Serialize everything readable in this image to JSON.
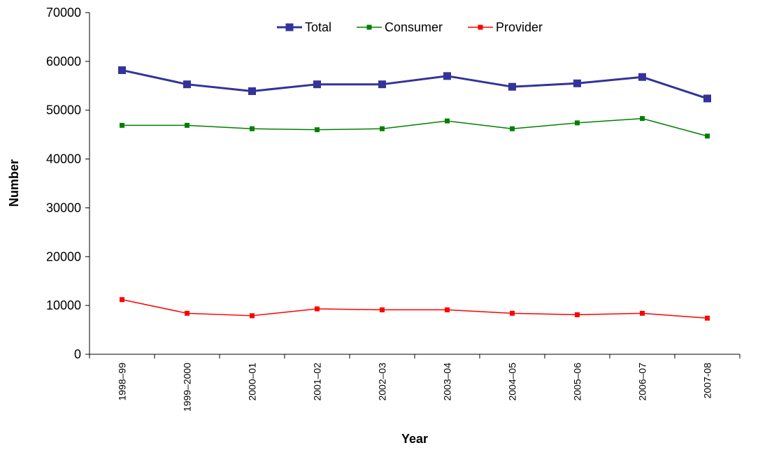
{
  "chart_data": {
    "type": "line",
    "title": "",
    "xlabel": "Year",
    "ylabel": "Number",
    "ylim": [
      0,
      70000
    ],
    "yticks": [
      "0",
      "10000",
      "20000",
      "30000",
      "40000",
      "50000",
      "60000",
      "70000"
    ],
    "categories": [
      "1998–99",
      "1999–2000",
      "2000–01",
      "2001–02",
      "2002–03",
      "2003–04",
      "2004–05",
      "2005–06",
      "2006–07",
      "2007-08"
    ],
    "legend_position": "top-center",
    "grid": false,
    "series": [
      {
        "name": "Total",
        "color": "#333399",
        "values": [
          58200,
          55300,
          53900,
          55300,
          55300,
          57000,
          54800,
          55500,
          56800,
          52400
        ]
      },
      {
        "name": "Consumer",
        "color": "#008000",
        "values": [
          46900,
          46900,
          46200,
          46000,
          46200,
          47800,
          46200,
          47400,
          48300,
          44700
        ]
      },
      {
        "name": "Provider",
        "color": "#ff0000",
        "values": [
          11200,
          8400,
          7900,
          9300,
          9100,
          9100,
          8400,
          8100,
          8400,
          7400
        ]
      }
    ]
  }
}
